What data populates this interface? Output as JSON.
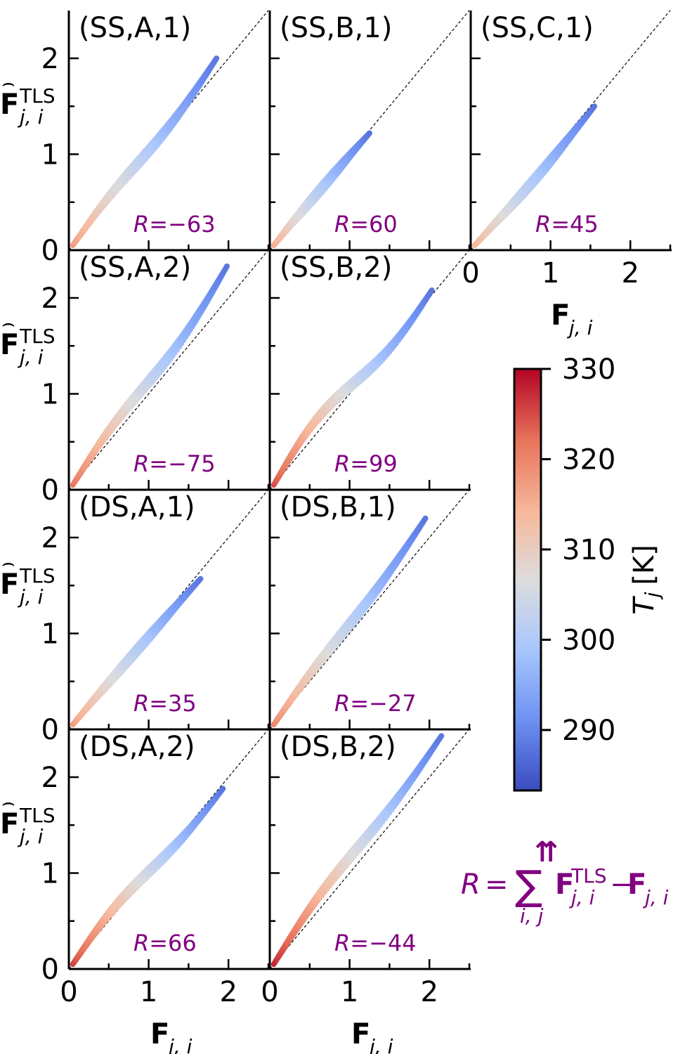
{
  "chart_data": {
    "type": "scatter",
    "colors": {
      "r_label": "#800080",
      "diagonal": "#000000",
      "colormap": [
        "#3b4cc0",
        "#6f92f3",
        "#aac7fd",
        "#dddcdc",
        "#f7b89c",
        "#e7745b",
        "#b40426"
      ]
    },
    "xlabel": "F",
    "xlabel_sub": "j, i",
    "ylabel": "F",
    "ylabel_sup": "TLS",
    "ylabel_sub": "j, i",
    "xlim": [
      0,
      2.5
    ],
    "ylim": [
      0,
      2.5
    ],
    "x_ticks": [
      "0",
      "1",
      "2"
    ],
    "y_ticks": [
      "0",
      "1",
      "2"
    ],
    "panels": [
      {
        "id": "ss-a-1",
        "label": "(SS,A,1)",
        "r": "R = −63",
        "x_end": 1.85,
        "y_end": 2.0,
        "t_start": 318,
        "t_end": 288,
        "bias": -0.03,
        "lobe": 0.04
      },
      {
        "id": "ss-b-1",
        "label": "(SS,B,1)",
        "r": "R = 60",
        "x_end": 1.25,
        "y_end": 1.22,
        "t_start": 316,
        "t_end": 288,
        "bias": 0.02,
        "lobe": 0.0
      },
      {
        "id": "ss-c-1",
        "label": "(SS,C,1)",
        "r": "R = 45",
        "x_end": 1.55,
        "y_end": 1.5,
        "t_start": 315,
        "t_end": 288,
        "bias": -0.03,
        "lobe": 0.0
      },
      {
        "id": "ss-a-2",
        "label": "(SS,A,2)",
        "r": "R = −75",
        "x_end": 1.98,
        "y_end": 2.33,
        "t_start": 322,
        "t_end": 288,
        "bias": -0.04,
        "lobe": 0.06
      },
      {
        "id": "ss-b-2",
        "label": "(SS,B,2)",
        "r": "R = 99",
        "x_end": 2.03,
        "y_end": 2.08,
        "t_start": 325,
        "t_end": 288,
        "bias": 0.05,
        "lobe": 0.1
      },
      {
        "id": "ds-a-1",
        "label": "(DS,A,1)",
        "r": "R = 35",
        "x_end": 1.65,
        "y_end": 1.57,
        "t_start": 318,
        "t_end": 288,
        "bias": 0.02,
        "lobe": 0.0
      },
      {
        "id": "ds-b-1",
        "label": "(DS,B,1)",
        "r": "R = −27",
        "x_end": 1.95,
        "y_end": 2.2,
        "t_start": 320,
        "t_end": 288,
        "bias": -0.02,
        "lobe": 0.03
      },
      {
        "id": "ds-a-2",
        "label": "(DS,A,2)",
        "r": "R = 66",
        "x_end": 1.93,
        "y_end": 1.88,
        "t_start": 326,
        "t_end": 288,
        "bias": 0.05,
        "lobe": 0.05
      },
      {
        "id": "ds-b-2",
        "label": "(DS,B,2)",
        "r": "R = −44",
        "x_end": 2.15,
        "y_end": 2.43,
        "t_start": 328,
        "t_end": 288,
        "bias": 0.03,
        "lobe": 0.05
      }
    ],
    "colorbar": {
      "label": "T",
      "label_sub": "j",
      "unit": "[K]",
      "ticks": [
        "330",
        "320",
        "310",
        "300",
        "290"
      ],
      "tick_values": [
        330,
        320,
        310,
        300,
        290
      ],
      "min": 283.3,
      "max": 330
    },
    "formula": {
      "lhs": "R",
      "eq": "=",
      "sum": "∑",
      "sum_sub": "i, j",
      "term1": "F",
      "term1_sup": "TLS",
      "term1_sub": "j, i",
      "minus": "−",
      "term2": "F",
      "term2_sub": "j, i"
    }
  }
}
